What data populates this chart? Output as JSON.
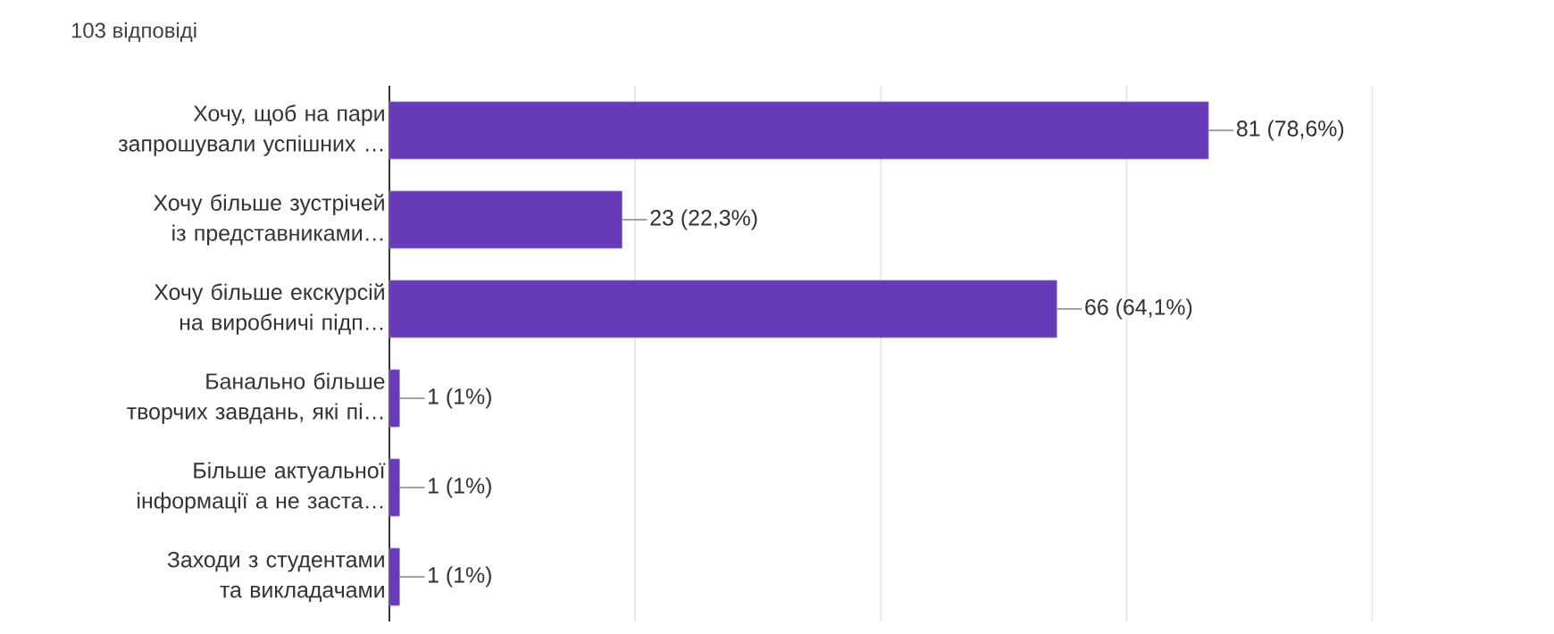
{
  "chart_data": {
    "type": "bar",
    "orientation": "horizontal",
    "title": "103 відповіді",
    "categories": [
      "Хочу, щоб на пари запрошували успішних …",
      "Хочу більше зустрічей із представниками…",
      "Хочу більше екскурсій на виробничі підп…",
      "Банально більше творчих завдань, які пі…",
      "Більше актуальної інформації а не заста…",
      "Заходи з студентами та викладачами"
    ],
    "values": [
      81,
      23,
      66,
      1,
      1,
      1
    ],
    "value_labels": [
      "81 (78,6%)",
      "23 (22,3%)",
      "66 (64,1%)",
      "1 (1%)",
      "1 (1%)",
      "1 (1%)"
    ],
    "color": "#673ab7",
    "grid": "x"
  }
}
